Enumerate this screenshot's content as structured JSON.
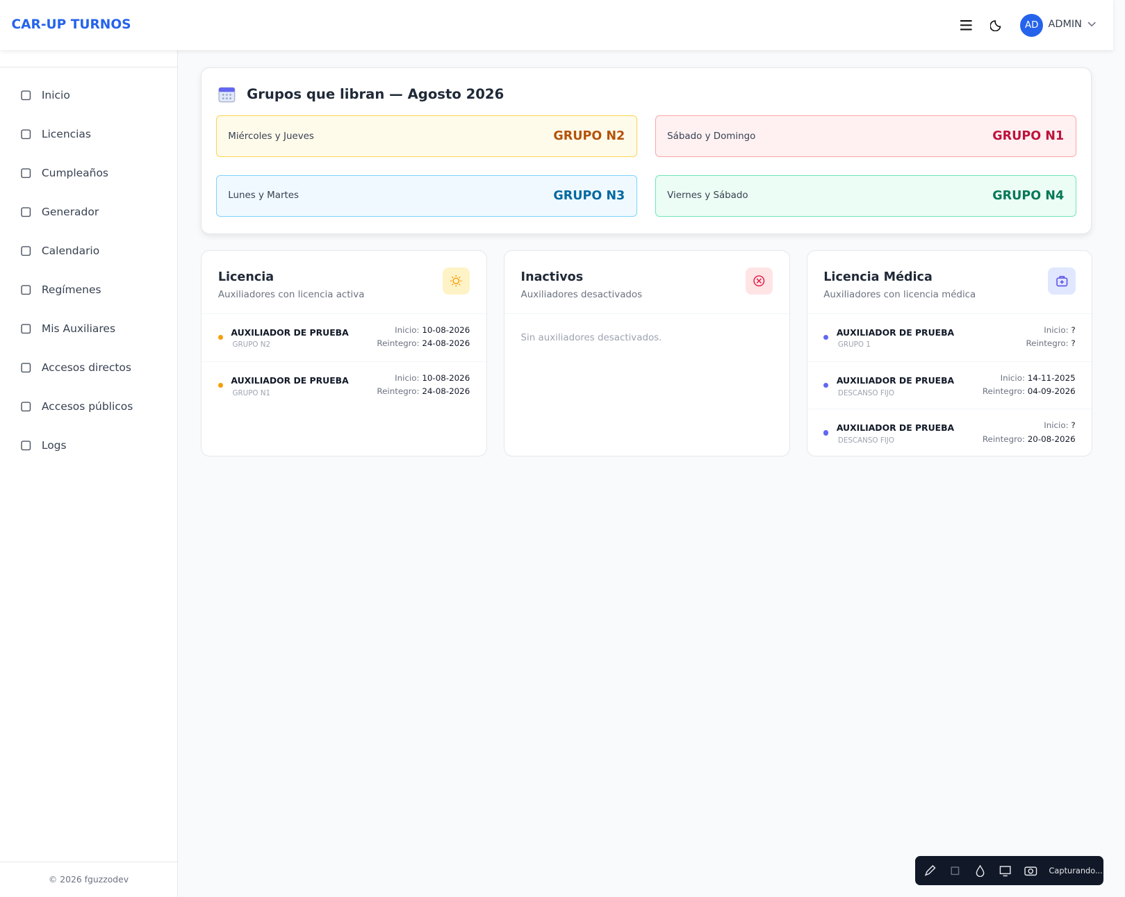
{
  "header": {
    "brand": "CAR-UP TURNOS",
    "avatar": "AD",
    "user": "ADMIN"
  },
  "nav": [
    "Inicio",
    "Licencias",
    "Cumpleaños",
    "Generador",
    "Calendario",
    "Regímenes",
    "Mis Auxiliares",
    "Accesos directos",
    "Accesos públicos",
    "Logs"
  ],
  "footer": "© 2026 fguzzodev",
  "groups": {
    "title": "Grupos que libran — Agosto 2026",
    "items": [
      {
        "days": "Miércoles y Jueves",
        "group": "GRUPO N2"
      },
      {
        "days": "Sábado y Domingo",
        "group": "GRUPO N1"
      },
      {
        "days": "Lunes y Martes",
        "group": "GRUPO N3"
      },
      {
        "days": "Viernes y Sábado",
        "group": "GRUPO N4"
      }
    ]
  },
  "cards": [
    {
      "title": "Licencia",
      "subtitle": "Auxiliadores con licencia activa",
      "rows": [
        {
          "name": "AUXILIADOR DE PRUEBA",
          "group": "GRUPO N2",
          "start_label": "Inicio:",
          "start": "10-08-2026",
          "return_label": "Reintegro:",
          "return": "24-08-2026"
        },
        {
          "name": "AUXILIADOR DE PRUEBA",
          "group": "GRUPO N1",
          "start_label": "Inicio:",
          "start": "10-08-2026",
          "return_label": "Reintegro:",
          "return": "24-08-2026"
        }
      ]
    },
    {
      "title": "Inactivos",
      "subtitle": "Auxiliadores desactivados",
      "empty": "Sin auxiliadores desactivados."
    },
    {
      "title": "Licencia Médica",
      "subtitle": "Auxiliadores con licencia médica",
      "rows": [
        {
          "name": "AUXILIADOR DE PRUEBA",
          "group": "GRUPO 1",
          "start_label": "Inicio:",
          "start": "?",
          "return_label": "Reintegro:",
          "return": "?"
        },
        {
          "name": "AUXILIADOR DE PRUEBA",
          "group": "DESCANSO FIJO",
          "start_label": "Inicio:",
          "start": "14-11-2025",
          "return_label": "Reintegro:",
          "return": "04-09-2026"
        },
        {
          "name": "AUXILIADOR DE PRUEBA",
          "group": "DESCANSO FIJO",
          "start_label": "Inicio:",
          "start": "?",
          "return_label": "Reintegro:",
          "return": "20-08-2026"
        }
      ]
    }
  ],
  "toolbar": {
    "status": "Capturando..."
  }
}
